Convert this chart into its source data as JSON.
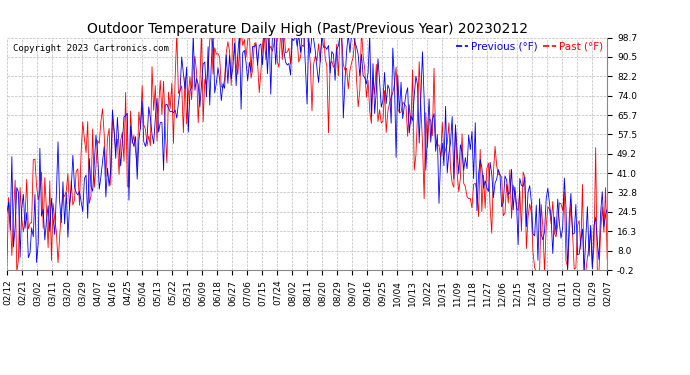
{
  "title": "Outdoor Temperature Daily High (Past/Previous Year) 20230212",
  "copyright": "Copyright 2023 Cartronics.com",
  "legend_previous": "Previous (°F)",
  "legend_past": "Past (°F)",
  "color_previous": "#0000FF",
  "color_past": "#FF0000",
  "background_color": "#FFFFFF",
  "grid_color": "#BBBBBB",
  "yticks": [
    -0.2,
    8.0,
    16.3,
    24.5,
    32.8,
    41.0,
    49.2,
    57.5,
    65.7,
    74.0,
    82.2,
    90.5,
    98.7
  ],
  "xtick_labels": [
    "02/12",
    "02/21",
    "03/02",
    "03/11",
    "03/20",
    "03/29",
    "04/07",
    "04/16",
    "04/25",
    "05/04",
    "05/13",
    "05/22",
    "05/31",
    "06/09",
    "06/18",
    "06/27",
    "07/06",
    "07/15",
    "07/24",
    "08/02",
    "08/11",
    "08/20",
    "08/29",
    "09/07",
    "09/16",
    "09/25",
    "10/04",
    "10/13",
    "10/22",
    "10/31",
    "11/09",
    "11/18",
    "11/27",
    "12/06",
    "12/15",
    "12/24",
    "01/02",
    "01/11",
    "01/20",
    "01/29",
    "02/07"
  ],
  "ylim": [
    -0.2,
    98.7
  ],
  "title_fontsize": 10,
  "axis_fontsize": 6.5,
  "legend_fontsize": 7.5,
  "copyright_fontsize": 6.5
}
